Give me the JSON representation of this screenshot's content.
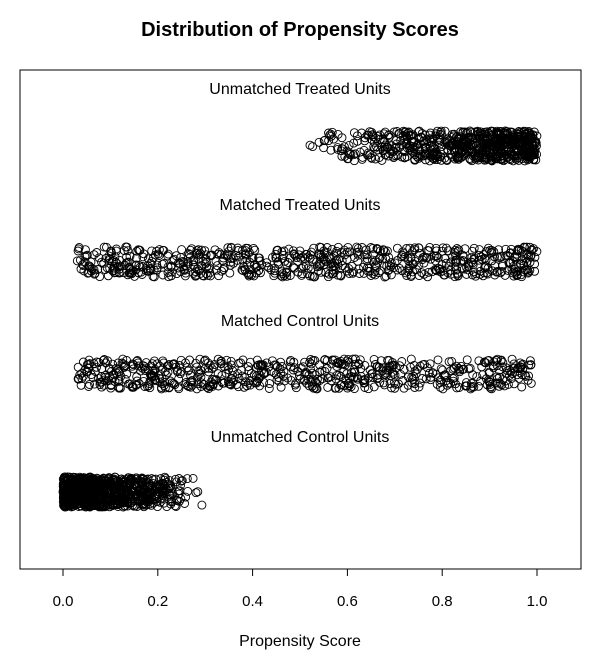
{
  "chart_data": {
    "type": "scatter",
    "title": "Distribution of Propensity Scores",
    "xlabel": "Propensity Score",
    "ylabel": "",
    "xlim": [
      -0.09,
      1.09
    ],
    "x_ticks": [
      "0.0",
      "0.2",
      "0.4",
      "0.6",
      "0.8",
      "1.0"
    ],
    "x_tick_values": [
      0.0,
      0.2,
      0.4,
      0.6,
      0.8,
      1.0
    ],
    "grid": false,
    "marker": "open-circle",
    "jittered": true,
    "groups": [
      {
        "name": "Unmatched Treated Units",
        "min": 0.49,
        "max": 1.0,
        "skew": "high",
        "density": 700
      },
      {
        "name": "Matched Treated Units",
        "min": 0.03,
        "max": 1.0,
        "skew": "uniform",
        "density": 700
      },
      {
        "name": "Matched Control Units",
        "min": 0.03,
        "max": 0.99,
        "skew": "uniform",
        "density": 650
      },
      {
        "name": "Unmatched Control Units",
        "min": 0.0,
        "max": 0.31,
        "skew": "low",
        "density": 900
      }
    ]
  }
}
